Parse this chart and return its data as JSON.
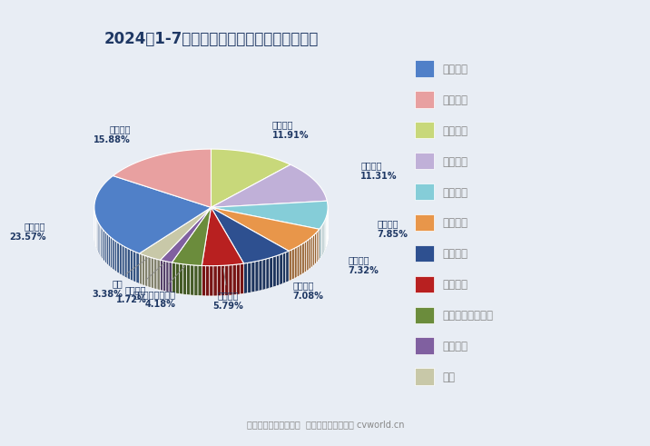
{
  "title": "2024年1-7月充电重卡品牌市场份额占比一览",
  "pie_labels": [
    "宇通集团",
    "中国重汽",
    "一汽解放",
    "陕汽集团",
    "东风公司",
    "福田汽车",
    "远程新能源商用车",
    "北奔重汽",
    "其他",
    "三一集团",
    "徐工汽车"
  ],
  "pie_values": [
    11.91,
    11.31,
    7.85,
    7.32,
    7.08,
    5.79,
    4.18,
    1.72,
    3.38,
    23.57,
    15.88
  ],
  "pie_colors": [
    "#C8D87A",
    "#C0B0D8",
    "#85CDD8",
    "#E8964A",
    "#2E5090",
    "#B82020",
    "#6B8C3C",
    "#8060A0",
    "#C8C8A8",
    "#5080C8",
    "#E8A0A0"
  ],
  "legend_labels": [
    "三一集团",
    "徐工汽车",
    "宇通集团",
    "中国重汽",
    "一汽解放",
    "陕汽集团",
    "东风公司",
    "福田汽车",
    "远程新能源商用车",
    "北奔重汽",
    "其他"
  ],
  "legend_colors": [
    "#5080C8",
    "#E8A0A0",
    "#C8D87A",
    "#C0B0D8",
    "#85CDD8",
    "#E8964A",
    "#2E5090",
    "#B82020",
    "#6B8C3C",
    "#8060A0",
    "#C8C8A8"
  ],
  "footer": "数据来源：交强险统计  制图：第一商用车网 cvworld.cn",
  "background_color": "#E8EDF4",
  "title_color": "#1F3864",
  "label_color": "#1F3864",
  "depth": 0.18,
  "ellipse_ratio": 0.5
}
